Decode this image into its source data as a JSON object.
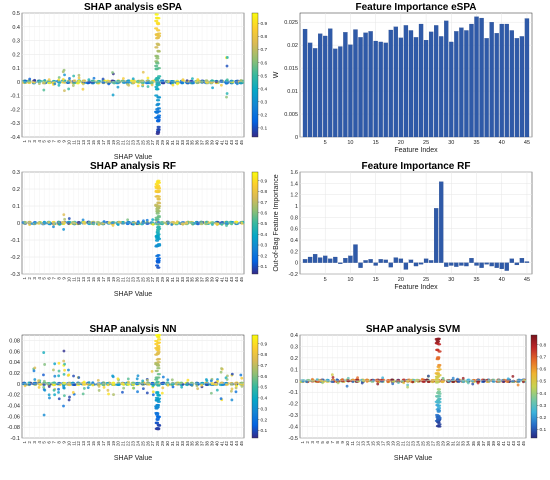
{
  "chart_data": [
    {
      "type": "scatter",
      "title": "SHAP analysis eSPA",
      "xlabel": "SHAP Value",
      "ylabel": "",
      "ylim": [
        -0.4,
        0.5
      ],
      "yticks": [
        -0.4,
        -0.3,
        -0.2,
        -0.1,
        0,
        0.1,
        0.2,
        0.3,
        0.4,
        0.5
      ],
      "features": 45,
      "spikes": [
        {
          "feature": 28,
          "min": -0.38,
          "max": 0.49
        }
      ],
      "spread": [
        0.03,
        0.03,
        0.05,
        0.02,
        0.06,
        0.04,
        0.05,
        0.08,
        0.15,
        0.1,
        0.05,
        0.05,
        0.06,
        0.04,
        0.03,
        0.04,
        0.03,
        0.04,
        0.1,
        0.04,
        0.03,
        0.05,
        0.03,
        0.04,
        0.08,
        0.06,
        0.04,
        0.0,
        0.04,
        0.02,
        0.03,
        0.03,
        0.03,
        0.04,
        0.03,
        0.04,
        0.03,
        0.03,
        0.05,
        0.03,
        0.03,
        0.2,
        0.04,
        0.03,
        0.02
      ],
      "colorbar": {
        "ticks": [
          0.1,
          0.2,
          0.3,
          0.4,
          0.5,
          0.6,
          0.7,
          0.8,
          0.9
        ],
        "range": [
          0.03,
          0.98
        ]
      }
    },
    {
      "type": "bar",
      "title": "Feature Importance eSPA",
      "xlabel": "Feature Index",
      "ylabel": "W",
      "ylim": [
        0,
        0.027
      ],
      "yticks": [
        0,
        0.005,
        0.01,
        0.015,
        0.02,
        0.025
      ],
      "ytick_labels": [
        "0",
        "0.005",
        "0.01",
        "0.015",
        "0.02",
        "0.025"
      ],
      "xticks": [
        5,
        10,
        15,
        20,
        25,
        30,
        35,
        40,
        45
      ],
      "x": [
        1,
        2,
        3,
        4,
        5,
        6,
        7,
        8,
        9,
        10,
        11,
        12,
        13,
        14,
        15,
        16,
        17,
        18,
        19,
        20,
        21,
        22,
        23,
        24,
        25,
        26,
        27,
        28,
        29,
        30,
        31,
        32,
        33,
        34,
        35,
        36,
        37,
        38,
        39,
        40,
        41,
        42,
        43,
        44,
        45
      ],
      "values": [
        0.0235,
        0.0205,
        0.0193,
        0.0225,
        0.022,
        0.0236,
        0.0192,
        0.0197,
        0.0228,
        0.0201,
        0.0234,
        0.0217,
        0.0227,
        0.023,
        0.0209,
        0.0207,
        0.0205,
        0.0233,
        0.024,
        0.0216,
        0.0243,
        0.0232,
        0.0217,
        0.0246,
        0.0211,
        0.0229,
        0.0243,
        0.0219,
        0.0253,
        0.0207,
        0.023,
        0.0238,
        0.0232,
        0.0246,
        0.0262,
        0.0259,
        0.0215,
        0.025,
        0.0226,
        0.0246,
        0.0246,
        0.0232,
        0.0215,
        0.0219,
        0.0258
      ]
    },
    {
      "type": "scatter",
      "title": "SHAP analysis RF",
      "xlabel": "SHAP Value",
      "ylabel": "",
      "ylim": [
        -0.3,
        0.3
      ],
      "yticks": [
        -0.3,
        -0.2,
        -0.1,
        0,
        0.1,
        0.2,
        0.3
      ],
      "features": 45,
      "spikes": [
        {
          "feature": 28,
          "min": -0.28,
          "max": 0.26
        }
      ],
      "spread": [
        0.01,
        0.01,
        0.02,
        0.01,
        0.02,
        0.01,
        0.03,
        0.04,
        0.05,
        0.03,
        0.02,
        0.02,
        0.02,
        0.01,
        0.01,
        0.02,
        0.01,
        0.01,
        0.02,
        0.01,
        0.01,
        0.02,
        0.01,
        0.01,
        0.02,
        0.02,
        0.03,
        0.0,
        0.01,
        0.01,
        0.01,
        0.01,
        0.01,
        0.01,
        0.01,
        0.01,
        0.01,
        0.01,
        0.01,
        0.01,
        0.01,
        0.02,
        0.01,
        0.01,
        0.01
      ],
      "colorbar": {
        "ticks": [
          0.1,
          0.2,
          0.3,
          0.4,
          0.5,
          0.6,
          0.7,
          0.8,
          0.9
        ],
        "range": [
          0.03,
          0.98
        ]
      }
    },
    {
      "type": "bar",
      "title": "Feature Importance RF",
      "xlabel": "Feature Index",
      "ylabel": "Out-of-Bag Feature Importance",
      "ylim": [
        -0.2,
        1.6
      ],
      "yticks": [
        -0.2,
        0,
        0.2,
        0.4,
        0.6,
        0.8,
        1,
        1.2,
        1.4,
        1.6
      ],
      "ytick_labels": [
        "-0.2",
        "0",
        "0.2",
        "0.4",
        "0.6",
        "0.8",
        "1",
        "1.2",
        "1.4",
        "1.6"
      ],
      "xticks": [
        5,
        10,
        15,
        20,
        25,
        30,
        35,
        40,
        45
      ],
      "x": [
        1,
        2,
        3,
        4,
        5,
        6,
        7,
        8,
        9,
        10,
        11,
        12,
        13,
        14,
        15,
        16,
        17,
        18,
        19,
        20,
        21,
        22,
        23,
        24,
        25,
        26,
        27,
        28,
        29,
        30,
        31,
        32,
        33,
        34,
        35,
        36,
        37,
        38,
        39,
        40,
        41,
        42,
        43,
        44,
        45
      ],
      "values": [
        0.06,
        0.1,
        0.15,
        0.09,
        0.12,
        0.07,
        0.1,
        -0.02,
        0.08,
        0.12,
        0.32,
        -0.09,
        0.04,
        0.06,
        -0.05,
        0.06,
        0.05,
        -0.08,
        0.09,
        0.07,
        -0.12,
        0.05,
        -0.06,
        -0.03,
        0.07,
        0.04,
        0.96,
        1.43,
        -0.07,
        -0.05,
        -0.07,
        -0.05,
        -0.06,
        0.08,
        -0.05,
        -0.09,
        -0.03,
        -0.06,
        -0.09,
        -0.11,
        -0.14,
        0.07,
        -0.04,
        0.08,
        0.02
      ]
    },
    {
      "type": "scatter",
      "title": "SHAP analysis NN",
      "xlabel": "SHAP Value",
      "ylabel": "",
      "ylim": [
        -0.1,
        0.09
      ],
      "yticks": [
        -0.1,
        -0.08,
        -0.06,
        -0.04,
        -0.02,
        0,
        0.02,
        0.04,
        0.06,
        0.08
      ],
      "features": 45,
      "spikes": [
        {
          "feature": 28,
          "min": -0.085,
          "max": 0.09
        }
      ],
      "spread": [
        0.005,
        0.005,
        0.03,
        0.02,
        0.06,
        0.03,
        0.05,
        0.04,
        0.07,
        0.03,
        0.02,
        0.02,
        0.02,
        0.01,
        0.01,
        0.02,
        0.01,
        0.02,
        0.02,
        0.01,
        0.02,
        0.01,
        0.01,
        0.02,
        0.02,
        0.02,
        0.03,
        0.0,
        0.02,
        0.01,
        0.01,
        0.01,
        0.01,
        0.01,
        0.01,
        0.01,
        0.01,
        0.01,
        0.02,
        0.02,
        0.03,
        0.02,
        0.03,
        0.02,
        0.02
      ],
      "colorbar": {
        "ticks": [
          0.1,
          0.2,
          0.3,
          0.4,
          0.5,
          0.6,
          0.7,
          0.8,
          0.9
        ],
        "range": [
          0.03,
          0.98
        ]
      }
    },
    {
      "type": "scatter",
      "title": "SHAP analysis SVM",
      "xlabel": "SHAP Value",
      "ylabel": "",
      "ylim": [
        -0.5,
        0.4
      ],
      "yticks": [
        -0.5,
        -0.4,
        -0.3,
        -0.2,
        -0.1,
        0,
        0.1,
        0.2,
        0.3,
        0.4
      ],
      "features": 45,
      "spikes": [
        {
          "feature": 28,
          "min": -0.4,
          "max": 0.38
        }
      ],
      "spread": [
        0.02,
        0.02,
        0.03,
        0.02,
        0.03,
        0.03,
        0.06,
        0.08,
        0.04,
        0.05,
        0.02,
        0.03,
        0.04,
        0.02,
        0.02,
        0.03,
        0.03,
        0.02,
        0.03,
        0.02,
        0.02,
        0.06,
        0.02,
        0.03,
        0.02,
        0.06,
        0.04,
        0.0,
        0.05,
        0.02,
        0.03,
        0.02,
        0.03,
        0.02,
        0.03,
        0.02,
        0.02,
        0.02,
        0.02,
        0.03,
        0.02,
        0.03,
        0.04,
        0.04,
        0.03
      ],
      "colorbar": {
        "ticks": [
          0.1,
          0.2,
          0.3,
          0.4,
          0.5,
          0.6,
          0.7,
          0.8
        ],
        "range": [
          0.03,
          0.88
        ]
      }
    }
  ]
}
